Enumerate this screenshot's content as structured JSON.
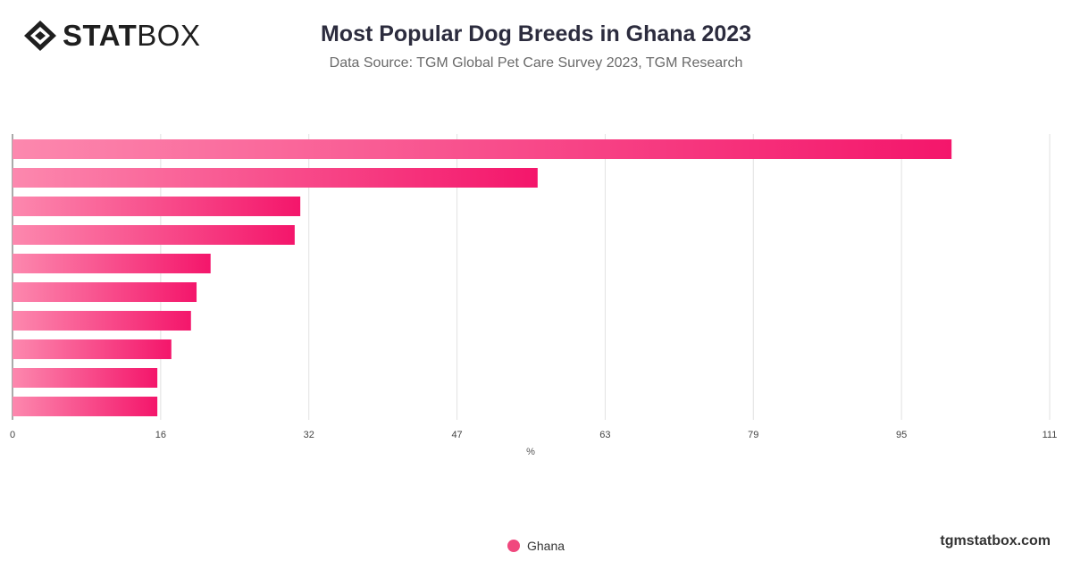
{
  "brand": {
    "logo_bold": "STAT",
    "logo_light": "BOX",
    "site": "tgmstatbox.com"
  },
  "title": "Most Popular Dog Breeds in Ghana 2023",
  "subtitle": "Data Source: TGM Global Pet Care Survey 2023, TGM Research",
  "colors": {
    "bar_start": "#fc88ae",
    "bar_end": "#f4166b",
    "legend": "#f0487e"
  },
  "chart_data": {
    "type": "bar",
    "orientation": "horizontal",
    "categories": [
      "",
      "",
      "",
      "",
      "",
      "",
      "",
      "",
      "",
      ""
    ],
    "series": [
      {
        "name": "Ghana",
        "values": [
          100.5,
          56.2,
          30.8,
          30.2,
          21.2,
          19.7,
          19.1,
          17.0,
          15.5,
          15.5
        ]
      }
    ],
    "xlim": [
      0,
      111
    ],
    "xticks": [
      "0",
      "16",
      "32",
      "47",
      "63",
      "79",
      "95",
      "111"
    ],
    "xlabel": "%",
    "grid": true,
    "legend_position": "bottom"
  }
}
